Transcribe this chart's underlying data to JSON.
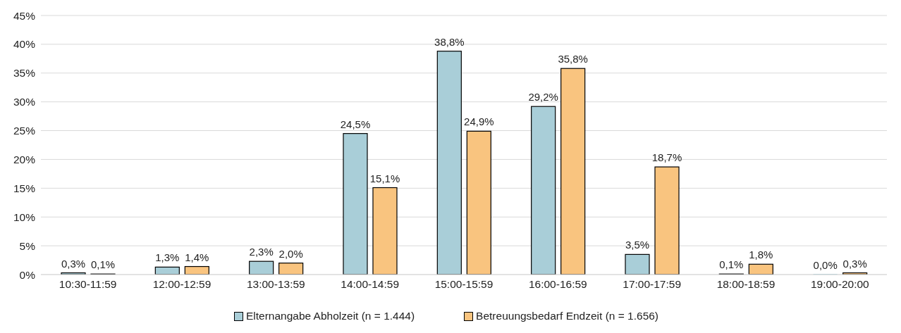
{
  "chart_data": {
    "type": "bar",
    "categories": [
      "10:30-11:59",
      "12:00-12:59",
      "13:00-13:59",
      "14:00-14:59",
      "15:00-15:59",
      "16:00-16:59",
      "17:00-17:59",
      "18:00-18:59",
      "19:00-20:00"
    ],
    "series": [
      {
        "name": "Elternangabe Abholzeit (n = 1.444)",
        "color": "#a9ced8",
        "values": [
          0.3,
          1.3,
          2.3,
          24.5,
          38.8,
          29.2,
          3.5,
          0.1,
          0.0
        ],
        "value_labels": [
          "0,3%",
          "1,3%",
          "2,3%",
          "24,5%",
          "38,8%",
          "29,2%",
          "3,5%",
          "0,1%",
          "0,0%"
        ]
      },
      {
        "name": "Betreuungsbedarf Endzeit (n = 1.656)",
        "color": "#f9c47f",
        "values": [
          0.1,
          1.4,
          2.0,
          15.1,
          24.9,
          35.8,
          18.7,
          1.8,
          0.3
        ],
        "value_labels": [
          "0,1%",
          "1,4%",
          "2,0%",
          "15,1%",
          "24,9%",
          "35,8%",
          "18,7%",
          "1,8%",
          "0,3%"
        ]
      }
    ],
    "ylim": [
      0,
      45
    ],
    "yticks": [
      {
        "value": 0,
        "label": "0%"
      },
      {
        "value": 5,
        "label": "5%"
      },
      {
        "value": 10,
        "label": "10%"
      },
      {
        "value": 15,
        "label": "15%"
      },
      {
        "value": 20,
        "label": "20%"
      },
      {
        "value": 25,
        "label": "25%"
      },
      {
        "value": 30,
        "label": "30%"
      },
      {
        "value": 35,
        "label": "35%"
      },
      {
        "value": 40,
        "label": "40%"
      },
      {
        "value": 45,
        "label": "45%"
      }
    ],
    "grid": "y",
    "legend": "bottom"
  }
}
